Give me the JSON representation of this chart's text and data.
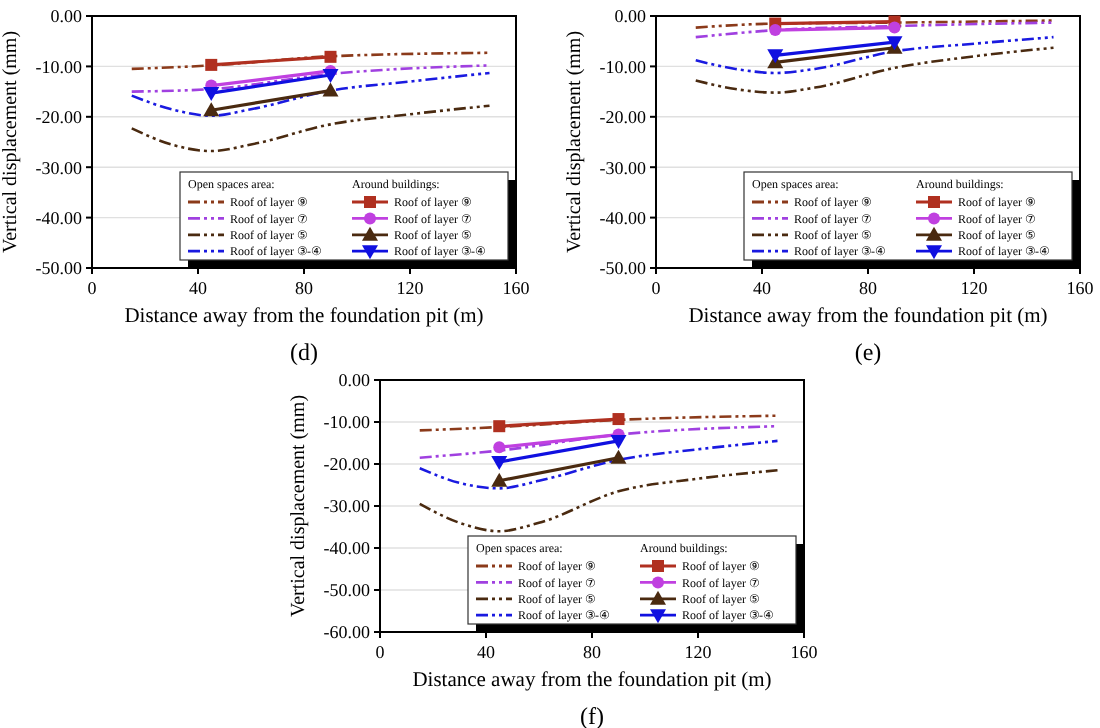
{
  "chart_data": [
    {
      "type": "line",
      "title": "(d)",
      "xlabel": "Distance away from the foundation pit (m)",
      "ylabel": "Vertical displacement (mm)",
      "xlim": [
        0,
        160
      ],
      "xticks": [
        0,
        40,
        80,
        120,
        160
      ],
      "ylim": [
        -50,
        0
      ],
      "yticks": [
        {
          "value": 0,
          "label": "0.00"
        },
        {
          "value": -10,
          "label": "-10.00"
        },
        {
          "value": -20,
          "label": "-20.00"
        },
        {
          "value": -30,
          "label": "-30.00"
        },
        {
          "value": -40,
          "label": "-40.00"
        },
        {
          "value": -50,
          "label": "-50.00"
        }
      ],
      "grid": "y",
      "legend": "bottom right",
      "annotations": [
        "Open spaces area:",
        "Around buildings:"
      ],
      "series": [
        {
          "name": "Roof of layer ⑨",
          "color": "#8b3a1a",
          "line_style": "dashed",
          "marker": "none",
          "x": [
            15,
            45,
            90,
            150
          ],
          "values": [
            -10.5,
            -9.8,
            -8,
            -7.3
          ]
        },
        {
          "name": "Roof of layer ⑦",
          "color": "#a040e0",
          "line_style": "dashed",
          "marker": "none",
          "x": [
            15,
            45,
            90,
            150
          ],
          "values": [
            -15,
            -14.5,
            -11.5,
            -9.8
          ]
        },
        {
          "name": "Roof of layer ⑤",
          "color": "#4a2a10",
          "line_style": "dashed",
          "marker": "none",
          "x": [
            15,
            30,
            45,
            60,
            90,
            120,
            150
          ],
          "values": [
            -22.3,
            -25.5,
            -26.8,
            -25.5,
            -21.5,
            -19.5,
            -17.8
          ]
        },
        {
          "name": "Roof of layer ③-④",
          "color": "#1a1ae0",
          "line_style": "dashed",
          "marker": "none",
          "x": [
            15,
            30,
            45,
            60,
            90,
            120,
            150
          ],
          "values": [
            -15.8,
            -18.5,
            -19.8,
            -18.5,
            -14.8,
            -13,
            -11.3
          ]
        },
        {
          "name": "Roof of layer ⑨",
          "color": "#b03020",
          "line_style": "solid",
          "marker": "square",
          "x": [
            45,
            90
          ],
          "values": [
            -9.7,
            -8.1
          ]
        },
        {
          "name": "Roof of layer ⑦",
          "color": "#c040e0",
          "line_style": "solid",
          "marker": "circle",
          "x": [
            45,
            90
          ],
          "values": [
            -13.8,
            -10.9
          ]
        },
        {
          "name": "Roof of layer ⑤",
          "color": "#4a2a10",
          "line_style": "solid",
          "marker": "triangle",
          "x": [
            45,
            90
          ],
          "values": [
            -18.7,
            -14.8
          ]
        },
        {
          "name": "Roof of layer ③-④",
          "color": "#1010e0",
          "line_style": "solid",
          "marker": "triangle-down",
          "x": [
            45,
            90
          ],
          "values": [
            -15.3,
            -11.7
          ]
        }
      ]
    },
    {
      "type": "line",
      "title": "(e)",
      "xlabel": "Distance away from the foundation pit (m)",
      "ylabel": "Vertical displacement (mm)",
      "xlim": [
        0,
        160
      ],
      "xticks": [
        0,
        40,
        80,
        120,
        160
      ],
      "ylim": [
        -50,
        0
      ],
      "yticks": [
        {
          "value": 0,
          "label": "0.00"
        },
        {
          "value": -10,
          "label": "-10.00"
        },
        {
          "value": -20,
          "label": "-20.00"
        },
        {
          "value": -30,
          "label": "-30.00"
        },
        {
          "value": -40,
          "label": "-40.00"
        },
        {
          "value": -50,
          "label": "-50.00"
        }
      ],
      "grid": "y",
      "legend": "bottom right",
      "annotations": [
        "Open spaces area:",
        "Around buildings:"
      ],
      "series": [
        {
          "name": "Roof of layer ⑨",
          "color": "#8b3a1a",
          "line_style": "dashed",
          "marker": "none",
          "x": [
            15,
            45,
            90,
            150
          ],
          "values": [
            -2.3,
            -1.5,
            -1.3,
            -0.9
          ]
        },
        {
          "name": "Roof of layer ⑦",
          "color": "#a040e0",
          "line_style": "dashed",
          "marker": "none",
          "x": [
            15,
            45,
            90,
            150
          ],
          "values": [
            -4.2,
            -2.8,
            -2,
            -1.3
          ]
        },
        {
          "name": "Roof of layer ⑤",
          "color": "#4a2a10",
          "line_style": "dashed",
          "marker": "none",
          "x": [
            15,
            30,
            45,
            60,
            90,
            120,
            150
          ],
          "values": [
            -12.8,
            -14.5,
            -15.2,
            -14.2,
            -10.3,
            -8,
            -6.3
          ]
        },
        {
          "name": "Roof of layer ③-④",
          "color": "#1a1ae0",
          "line_style": "dashed",
          "marker": "none",
          "x": [
            15,
            30,
            45,
            60,
            90,
            120,
            150
          ],
          "values": [
            -8.8,
            -10.5,
            -11.3,
            -10.5,
            -7,
            -5.5,
            -4.2
          ]
        },
        {
          "name": "Roof of layer ⑨",
          "color": "#b03020",
          "line_style": "solid",
          "marker": "square",
          "x": [
            45,
            90
          ],
          "values": [
            -1.5,
            -1.1
          ]
        },
        {
          "name": "Roof of layer ⑦",
          "color": "#c040e0",
          "line_style": "solid",
          "marker": "circle",
          "x": [
            45,
            90
          ],
          "values": [
            -2.8,
            -2.3
          ]
        },
        {
          "name": "Roof of layer ⑤",
          "color": "#4a2a10",
          "line_style": "solid",
          "marker": "triangle",
          "x": [
            45,
            90
          ],
          "values": [
            -9.2,
            -6.3
          ]
        },
        {
          "name": "Roof of layer ③-④",
          "color": "#1010e0",
          "line_style": "solid",
          "marker": "triangle-down",
          "x": [
            45,
            90
          ],
          "values": [
            -7.8,
            -5.2
          ]
        }
      ]
    },
    {
      "type": "line",
      "title": "(f)",
      "xlabel": "Distance away from the foundation pit (m)",
      "ylabel": "Vertical displacement (mm)",
      "xlim": [
        0,
        160
      ],
      "xticks": [
        0,
        40,
        80,
        120,
        160
      ],
      "ylim": [
        -60,
        0
      ],
      "yticks": [
        {
          "value": 0,
          "label": "0.00"
        },
        {
          "value": -10,
          "label": "-10.00"
        },
        {
          "value": -20,
          "label": "-20.00"
        },
        {
          "value": -30,
          "label": "-30.00"
        },
        {
          "value": -40,
          "label": "-40.00"
        },
        {
          "value": -50,
          "label": "-50.00"
        },
        {
          "value": -60,
          "label": "-60.00"
        }
      ],
      "grid": "y",
      "legend": "bottom right",
      "annotations": [
        "Open spaces area:",
        "Around buildings:"
      ],
      "series": [
        {
          "name": "Roof of layer ⑨",
          "color": "#8b3a1a",
          "line_style": "dashed",
          "marker": "none",
          "x": [
            15,
            45,
            90,
            150
          ],
          "values": [
            -12,
            -11.2,
            -9.5,
            -8.5
          ]
        },
        {
          "name": "Roof of layer ⑦",
          "color": "#a040e0",
          "line_style": "dashed",
          "marker": "none",
          "x": [
            15,
            45,
            90,
            150
          ],
          "values": [
            -18.5,
            -16.8,
            -13,
            -11
          ]
        },
        {
          "name": "Roof of layer ⑤",
          "color": "#4a2a10",
          "line_style": "dashed",
          "marker": "none",
          "x": [
            15,
            30,
            45,
            60,
            90,
            120,
            150
          ],
          "values": [
            -29.5,
            -34,
            -36,
            -34,
            -26.5,
            -23.5,
            -21.5
          ]
        },
        {
          "name": "Roof of layer ③-④",
          "color": "#1a1ae0",
          "line_style": "dashed",
          "marker": "none",
          "x": [
            15,
            30,
            45,
            60,
            90,
            120,
            150
          ],
          "values": [
            -21,
            -24.5,
            -25.8,
            -24,
            -19,
            -16.5,
            -14.5
          ]
        },
        {
          "name": "Roof of layer ⑨",
          "color": "#b03020",
          "line_style": "solid",
          "marker": "square",
          "x": [
            45,
            90
          ],
          "values": [
            -11,
            -9.3
          ]
        },
        {
          "name": "Roof of layer ⑦",
          "color": "#c040e0",
          "line_style": "solid",
          "marker": "circle",
          "x": [
            45,
            90
          ],
          "values": [
            -16,
            -13
          ]
        },
        {
          "name": "Roof of layer ⑤",
          "color": "#4a2a10",
          "line_style": "solid",
          "marker": "triangle",
          "x": [
            45,
            90
          ],
          "values": [
            -24,
            -18.5
          ]
        },
        {
          "name": "Roof of layer ③-④",
          "color": "#1010e0",
          "line_style": "solid",
          "marker": "triangle-down",
          "x": [
            45,
            90
          ],
          "values": [
            -19.5,
            -14.5
          ]
        }
      ]
    }
  ]
}
